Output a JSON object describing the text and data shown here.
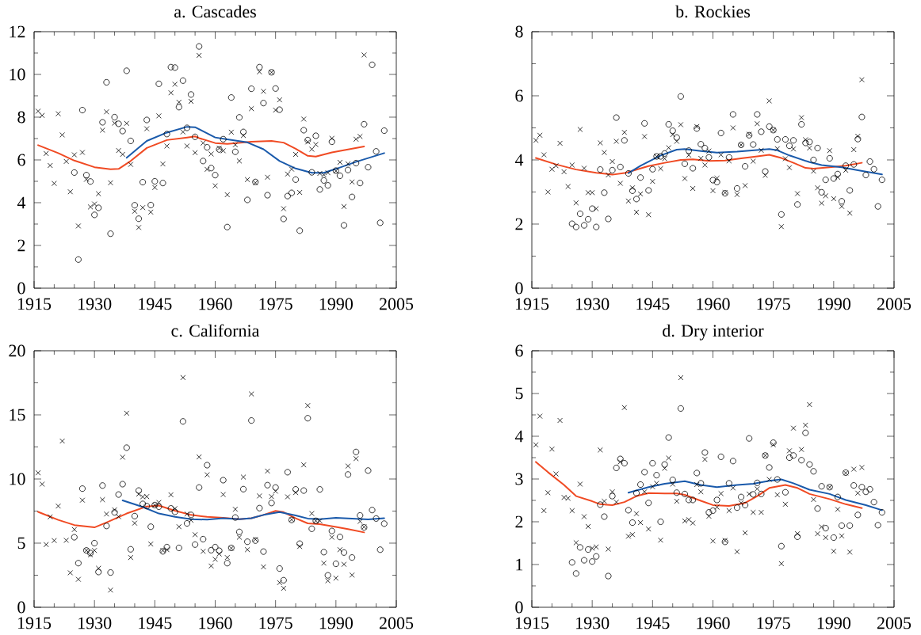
{
  "chart_data": [
    {
      "type": "scatter",
      "title": "a. Cascades",
      "xlim": [
        1915,
        2005
      ],
      "ylim": [
        0,
        12
      ],
      "xticks": [
        1915,
        1930,
        1945,
        1960,
        1975,
        1990,
        2005
      ],
      "yticks": [
        0,
        2,
        4,
        6,
        8,
        10,
        12
      ],
      "series": [
        {
          "marker": "circle",
          "color": "#000000",
          "x": [
            1925,
            1926,
            1927,
            1928,
            1929,
            1930,
            1931,
            1932,
            1933,
            1934,
            1935,
            1936,
            1937,
            1938,
            1939,
            1940,
            1941,
            1942,
            1943,
            1944,
            1945,
            1946,
            1947,
            1948,
            1949,
            1950,
            1951,
            1952,
            1953,
            1954,
            1955,
            1956,
            1957,
            1958,
            1959,
            1960,
            1961,
            1962,
            1963,
            1964,
            1965,
            1966,
            1967,
            1968,
            1969,
            1970,
            1971,
            1972,
            1973,
            1974,
            1975,
            1976,
            1977,
            1978,
            1979,
            1980,
            1981,
            1982,
            1983,
            1984,
            1985,
            1986,
            1987,
            1988,
            1989,
            1990,
            1991,
            1992,
            1993,
            1994,
            1995,
            1996,
            1997,
            1998,
            1999,
            2000,
            2001,
            2002
          ],
          "values": [
            5.41,
            1.34,
            8.33,
            5.29,
            4.99,
            3.43,
            3.76,
            7.76,
            9.63,
            2.55,
            8.0,
            7.69,
            7.35,
            10.17,
            6.89,
            3.88,
            3.25,
            4.96,
            7.87,
            3.89,
            5.0,
            9.56,
            4.92,
            7.21,
            10.34,
            10.32,
            8.47,
            9.71,
            7.5,
            9.06,
            7.08,
            11.31,
            5.95,
            6.59,
            5.62,
            5.29,
            6.49,
            6.97,
            2.86,
            8.92,
            6.38,
            7.99,
            7.31,
            4.13,
            9.33,
            4.97,
            10.34,
            8.66,
            4.35,
            10.1,
            9.34,
            8.35,
            3.24,
            4.31,
            4.46,
            5.08,
            2.69,
            7.39,
            6.93,
            5.42,
            7.13,
            4.62,
            5.04,
            4.81,
            6.85,
            5.5,
            5.26,
            2.94,
            5.53,
            4.27,
            5.85,
            4.92,
            7.67,
            5.66,
            10.45,
            6.4,
            3.06,
            7.37
          ]
        },
        {
          "marker": "cross",
          "color": "#000000",
          "x": [
            1916,
            1917,
            1918,
            1919,
            1920,
            1921,
            1922,
            1923,
            1924,
            1925,
            1926,
            1927,
            1928,
            1929,
            1930,
            1931,
            1932,
            1933,
            1934,
            1935,
            1936,
            1937,
            1938,
            1939,
            1940,
            1941,
            1942,
            1943,
            1944,
            1945,
            1946,
            1947,
            1948,
            1949,
            1950,
            1951,
            1952,
            1953,
            1954,
            1955,
            1956,
            1957,
            1958,
            1959,
            1960,
            1961,
            1962,
            1963,
            1964,
            1965,
            1966,
            1967,
            1968,
            1969,
            1970,
            1971,
            1972,
            1973,
            1974,
            1975,
            1976,
            1977,
            1978,
            1979,
            1980,
            1981,
            1982,
            1983,
            1984,
            1985,
            1986,
            1987,
            1988,
            1989,
            1990,
            1991,
            1992,
            1993,
            1994,
            1995,
            1996,
            1997
          ],
          "values": [
            8.28,
            8.08,
            6.3,
            5.74,
            4.9,
            8.16,
            7.17,
            5.93,
            4.51,
            6.24,
            2.91,
            6.35,
            5.09,
            3.8,
            3.94,
            4.42,
            7.39,
            8.25,
            4.93,
            7.72,
            6.44,
            6.26,
            7.71,
            5.79,
            3.6,
            2.84,
            3.77,
            7.46,
            3.56,
            4.71,
            8.06,
            5.81,
            6.65,
            9.14,
            9.54,
            8.7,
            7.31,
            6.65,
            8.74,
            6.34,
            10.89,
            6.79,
            5.56,
            6.28,
            4.79,
            6.55,
            6.43,
            4.37,
            7.3,
            6.71,
            5.95,
            7.14,
            5.08,
            8.4,
            4.93,
            10.12,
            9.21,
            5.19,
            10.1,
            8.33,
            8.81,
            3.72,
            5.34,
            5.57,
            6.26,
            4.48,
            7.91,
            6.84,
            6.5,
            6.72,
            5.37,
            5.3,
            5.4,
            7.01,
            5.48,
            5.89,
            3.82,
            5.82,
            4.97,
            6.97,
            7.1,
            10.91
          ]
        },
        {
          "type": "line",
          "line_style": "solid",
          "color": "#f04a23",
          "x": [
            1916,
            1921,
            1925,
            1930,
            1934,
            1936,
            1939,
            1943,
            1948,
            1953,
            1955,
            1956,
            1960,
            1963,
            1969,
            1974,
            1977,
            1980,
            1983,
            1985,
            1989,
            1993,
            1997
          ],
          "values": [
            6.69,
            6.32,
            5.97,
            5.66,
            5.56,
            5.58,
            5.95,
            6.56,
            6.93,
            7.05,
            7.1,
            7.02,
            6.79,
            6.75,
            6.85,
            6.89,
            6.81,
            6.52,
            6.19,
            6.16,
            6.35,
            6.49,
            6.63
          ]
        },
        {
          "type": "line",
          "line_style": "solid",
          "color": "#1a5aab",
          "x": [
            1938,
            1943,
            1948,
            1953,
            1955,
            1960,
            1963,
            1968,
            1972,
            1976,
            1980,
            1984,
            1987,
            1990,
            1995,
            2002
          ],
          "values": [
            6.1,
            6.89,
            7.28,
            7.55,
            7.53,
            7.05,
            6.96,
            6.82,
            6.5,
            5.95,
            5.6,
            5.4,
            5.4,
            5.58,
            5.91,
            6.32
          ]
        }
      ]
    },
    {
      "type": "scatter",
      "title": "b. Rockies",
      "xlim": [
        1915,
        2005
      ],
      "ylim": [
        0,
        8
      ],
      "xticks": [
        1915,
        1930,
        1945,
        1960,
        1975,
        1990,
        2005
      ],
      "yticks": [
        0,
        2,
        4,
        6,
        8
      ],
      "series": [
        {
          "marker": "circle",
          "color": "#000000",
          "x": [
            1925,
            1926,
            1927,
            1928,
            1929,
            1930,
            1931,
            1932,
            1933,
            1934,
            1935,
            1936,
            1937,
            1938,
            1939,
            1940,
            1941,
            1942,
            1943,
            1944,
            1945,
            1946,
            1947,
            1948,
            1949,
            1950,
            1951,
            1952,
            1953,
            1954,
            1955,
            1956,
            1957,
            1958,
            1959,
            1960,
            1961,
            1962,
            1963,
            1964,
            1965,
            1966,
            1967,
            1968,
            1969,
            1970,
            1971,
            1972,
            1973,
            1974,
            1975,
            1976,
            1977,
            1978,
            1979,
            1980,
            1981,
            1982,
            1983,
            1984,
            1985,
            1986,
            1987,
            1988,
            1989,
            1990,
            1991,
            1992,
            1993,
            1994,
            1995,
            1996,
            1997,
            1998,
            1999,
            2000,
            2001,
            2002
          ],
          "values": [
            2.01,
            1.91,
            2.32,
            1.96,
            2.15,
            2.48,
            1.91,
            3.7,
            2.98,
            2.16,
            3.68,
            5.32,
            3.78,
            4.61,
            3.58,
            3.04,
            2.78,
            3.45,
            5.14,
            3.05,
            3.71,
            4.11,
            4.11,
            4.2,
            5.11,
            4.91,
            4.7,
            5.98,
            3.88,
            4.29,
            3.74,
            4.98,
            4.49,
            4.37,
            4.08,
            3.37,
            3.31,
            4.84,
            2.96,
            4.08,
            5.42,
            3.11,
            4.47,
            3.8,
            4.77,
            4.48,
            5.42,
            4.88,
            3.64,
            5.04,
            4.93,
            4.64,
            2.3,
            4.64,
            4.44,
            4.61,
            2.61,
            5.11,
            4.53,
            4.56,
            4.0,
            4.37,
            2.99,
            3.38,
            4.05,
            3.42,
            3.56,
            2.71,
            3.82,
            3.05,
            3.86,
            4.65,
            5.34,
            3.53,
            3.95,
            3.71,
            2.55,
            3.38
          ]
        },
        {
          "marker": "cross",
          "color": "#000000",
          "x": [
            1916,
            1917,
            1918,
            1919,
            1920,
            1921,
            1922,
            1923,
            1924,
            1925,
            1926,
            1927,
            1928,
            1929,
            1930,
            1931,
            1932,
            1933,
            1934,
            1935,
            1936,
            1937,
            1938,
            1939,
            1940,
            1941,
            1942,
            1943,
            1944,
            1945,
            1946,
            1947,
            1948,
            1949,
            1950,
            1951,
            1952,
            1953,
            1954,
            1955,
            1956,
            1957,
            1958,
            1959,
            1960,
            1961,
            1962,
            1963,
            1964,
            1965,
            1966,
            1967,
            1968,
            1969,
            1970,
            1971,
            1972,
            1973,
            1974,
            1975,
            1976,
            1977,
            1978,
            1979,
            1980,
            1981,
            1982,
            1983,
            1984,
            1985,
            1986,
            1987,
            1988,
            1989,
            1990,
            1991,
            1992,
            1993,
            1994,
            1995,
            1996,
            1997
          ],
          "values": [
            4.61,
            4.77,
            4.16,
            3.0,
            3.71,
            3.82,
            4.52,
            3.63,
            3.17,
            3.84,
            2.66,
            4.95,
            3.74,
            2.98,
            2.98,
            2.48,
            4.53,
            4.23,
            3.53,
            3.95,
            4.58,
            3.27,
            4.86,
            2.72,
            3.13,
            2.37,
            2.94,
            4.73,
            2.29,
            3.33,
            4.11,
            3.73,
            4.04,
            4.38,
            4.79,
            4.58,
            5.1,
            3.42,
            4.15,
            3.11,
            5.04,
            4.05,
            3.84,
            4.28,
            3.04,
            3.43,
            4.16,
            2.98,
            3.97,
            5.0,
            2.92,
            4.47,
            3.2,
            4.8,
            3.96,
            5.13,
            4.3,
            3.52,
            5.84,
            4.93,
            4.35,
            1.92,
            4.04,
            3.76,
            4.34,
            2.95,
            5.32,
            4.63,
            4.37,
            3.65,
            3.13,
            2.65,
            2.88,
            4.29,
            2.79,
            3.46,
            2.55,
            3.68,
            2.34,
            4.32,
            4.74,
            6.5
          ]
        },
        {
          "type": "line",
          "line_style": "solid",
          "color": "#f04a23",
          "x": [
            1916,
            1921,
            1926,
            1931,
            1935,
            1938,
            1940,
            1944,
            1948,
            1952,
            1955,
            1959,
            1963,
            1967,
            1971,
            1974,
            1977,
            1980,
            1983,
            1985,
            1989,
            1993,
            1997
          ],
          "values": [
            4.06,
            3.86,
            3.7,
            3.6,
            3.54,
            3.59,
            3.66,
            3.81,
            3.91,
            4.0,
            4.02,
            3.97,
            3.98,
            4.05,
            4.11,
            4.16,
            4.06,
            3.91,
            3.75,
            3.73,
            3.77,
            3.82,
            3.91
          ]
        },
        {
          "type": "line",
          "line_style": "solid",
          "color": "#1a5aab",
          "x": [
            1939,
            1942,
            1947,
            1951,
            1953,
            1957,
            1961,
            1966,
            1970,
            1974,
            1976,
            1979,
            1984,
            1987,
            1992,
            1996,
            2002
          ],
          "values": [
            3.59,
            3.82,
            4.14,
            4.32,
            4.34,
            4.28,
            4.23,
            4.26,
            4.3,
            4.34,
            4.3,
            4.14,
            3.93,
            3.84,
            3.77,
            3.68,
            3.55
          ]
        }
      ]
    },
    {
      "type": "scatter",
      "title": "c. California",
      "xlim": [
        1915,
        2005
      ],
      "ylim": [
        0,
        20
      ],
      "xticks": [
        1915,
        1930,
        1945,
        1960,
        1975,
        1990,
        2005
      ],
      "yticks": [
        0,
        5,
        10,
        15,
        20
      ],
      "series": [
        {
          "marker": "circle",
          "color": "#000000",
          "x": [
            1925,
            1926,
            1927,
            1928,
            1929,
            1930,
            1931,
            1932,
            1933,
            1934,
            1935,
            1936,
            1937,
            1938,
            1939,
            1940,
            1941,
            1942,
            1943,
            1944,
            1945,
            1946,
            1947,
            1948,
            1949,
            1950,
            1951,
            1952,
            1953,
            1954,
            1955,
            1956,
            1957,
            1958,
            1959,
            1960,
            1961,
            1962,
            1963,
            1964,
            1965,
            1966,
            1967,
            1968,
            1969,
            1970,
            1971,
            1972,
            1973,
            1974,
            1975,
            1976,
            1977,
            1978,
            1979,
            1980,
            1981,
            1982,
            1983,
            1984,
            1985,
            1986,
            1987,
            1988,
            1989,
            1990,
            1991,
            1992,
            1993,
            1994,
            1995,
            1996,
            1997,
            1998,
            1999,
            2000,
            2001,
            2002
          ],
          "values": [
            5.46,
            3.44,
            9.25,
            4.43,
            4.23,
            5.0,
            2.75,
            9.49,
            6.34,
            2.71,
            7.4,
            8.79,
            9.6,
            12.44,
            4.52,
            7.11,
            9.1,
            8.06,
            7.89,
            6.28,
            7.97,
            7.84,
            4.36,
            4.69,
            7.71,
            7.44,
            4.63,
            14.49,
            6.54,
            7.2,
            4.89,
            9.34,
            5.31,
            11.08,
            4.45,
            4.69,
            4.41,
            9.91,
            3.44,
            4.63,
            7.0,
            5.88,
            9.21,
            5.11,
            14.56,
            5.2,
            7.73,
            4.34,
            9.52,
            8.13,
            9.34,
            3.02,
            2.11,
            10.53,
            6.81,
            9.19,
            4.96,
            9.1,
            14.74,
            6.12,
            6.74,
            9.19,
            4.3,
            2.49,
            5.95,
            3.39,
            5.48,
            4.27,
            10.35,
            3.88,
            12.11,
            7.16,
            6.23,
            10.66,
            7.58,
            6.92,
            4.49,
            6.52
          ]
        },
        {
          "marker": "cross",
          "color": "#000000",
          "x": [
            1916,
            1917,
            1918,
            1919,
            1920,
            1921,
            1922,
            1923,
            1924,
            1925,
            1926,
            1927,
            1928,
            1929,
            1930,
            1931,
            1932,
            1933,
            1934,
            1935,
            1936,
            1937,
            1938,
            1939,
            1940,
            1941,
            1942,
            1943,
            1944,
            1945,
            1946,
            1947,
            1948,
            1949,
            1950,
            1951,
            1952,
            1953,
            1954,
            1955,
            1956,
            1957,
            1958,
            1959,
            1960,
            1961,
            1962,
            1963,
            1964,
            1965,
            1966,
            1967,
            1968,
            1969,
            1970,
            1971,
            1972,
            1973,
            1974,
            1975,
            1976,
            1977,
            1978,
            1979,
            1980,
            1981,
            1982,
            1983,
            1984,
            1985,
            1986,
            1987,
            1988,
            1989,
            1990,
            1991,
            1992,
            1993,
            1994,
            1995,
            1996,
            1997
          ],
          "values": [
            10.48,
            9.6,
            4.89,
            7.05,
            5.2,
            7.89,
            12.96,
            5.22,
            2.69,
            6.06,
            2.18,
            8.35,
            4.43,
            4.1,
            4.43,
            3.04,
            8.39,
            7.27,
            1.34,
            7.6,
            7.07,
            11.7,
            15.13,
            3.88,
            6.56,
            8.83,
            8.61,
            8.63,
            4.93,
            7.97,
            8.17,
            4.43,
            4.49,
            8.77,
            7.69,
            6.28,
            17.91,
            7.27,
            6.78,
            5.66,
            11.72,
            4.36,
            10.33,
            3.22,
            3.74,
            4.16,
            8.79,
            3.88,
            4.6,
            7.64,
            5.46,
            10.15,
            4.49,
            16.63,
            5.29,
            8.68,
            3.15,
            10.62,
            8.63,
            9.05,
            1.92,
            1.48,
            8.61,
            6.83,
            8.94,
            4.74,
            11.1,
            15.73,
            7.31,
            6.74,
            6.74,
            3.44,
            2.07,
            5.46,
            2.27,
            4.49,
            3.35,
            11.01,
            2.51,
            11.59,
            6.7,
            6.26
          ]
        },
        {
          "type": "line",
          "line_style": "solid",
          "color": "#f04a23",
          "x": [
            1916,
            1921,
            1925,
            1930,
            1933,
            1938,
            1943,
            1946,
            1950,
            1954,
            1958,
            1962,
            1966,
            1969,
            1972,
            1975,
            1977,
            1980,
            1983,
            1986,
            1990,
            1993,
            1997
          ],
          "values": [
            7.44,
            6.81,
            6.41,
            6.23,
            6.61,
            7.31,
            7.86,
            7.93,
            7.53,
            7.2,
            7.05,
            6.98,
            6.87,
            6.94,
            7.2,
            7.51,
            7.42,
            6.94,
            6.54,
            6.48,
            6.26,
            6.1,
            5.84
          ]
        },
        {
          "type": "line",
          "line_style": "solid",
          "color": "#1a5aab",
          "x": [
            1937,
            1942,
            1946,
            1950,
            1954,
            1958,
            1962,
            1966,
            1969,
            1972,
            1976,
            1980,
            1983,
            1986,
            1990,
            1994,
            1998,
            2002
          ],
          "values": [
            8.33,
            7.82,
            7.31,
            7.05,
            6.87,
            6.83,
            6.94,
            6.87,
            6.94,
            7.2,
            7.42,
            7.16,
            6.92,
            6.87,
            6.98,
            6.92,
            6.85,
            6.94
          ]
        }
      ]
    },
    {
      "type": "scatter",
      "title": "d. Dry interior",
      "xlim": [
        1915,
        2005
      ],
      "ylim": [
        0,
        6
      ],
      "xticks": [
        1915,
        1930,
        1945,
        1960,
        1975,
        1990,
        2005
      ],
      "yticks": [
        0,
        1,
        2,
        3,
        4,
        5,
        6
      ],
      "series": [
        {
          "marker": "circle",
          "color": "#000000",
          "x": [
            1925,
            1926,
            1927,
            1928,
            1929,
            1930,
            1931,
            1932,
            1933,
            1934,
            1935,
            1936,
            1937,
            1938,
            1939,
            1940,
            1941,
            1942,
            1943,
            1944,
            1945,
            1946,
            1947,
            1948,
            1949,
            1950,
            1951,
            1952,
            1953,
            1954,
            1955,
            1956,
            1957,
            1958,
            1959,
            1960,
            1961,
            1962,
            1963,
            1964,
            1965,
            1966,
            1967,
            1968,
            1969,
            1970,
            1971,
            1972,
            1973,
            1974,
            1975,
            1976,
            1977,
            1978,
            1979,
            1980,
            1981,
            1982,
            1983,
            1984,
            1985,
            1986,
            1987,
            1988,
            1989,
            1990,
            1991,
            1992,
            1993,
            1994,
            1995,
            1996,
            1997,
            1998,
            1999,
            2000,
            2001,
            2002
          ],
          "values": [
            1.05,
            0.79,
            1.4,
            1.1,
            1.35,
            1.07,
            1.19,
            2.4,
            2.12,
            0.73,
            2.6,
            3.26,
            3.47,
            3.37,
            2.27,
            1.98,
            2.67,
            2.87,
            3.16,
            2.44,
            3.37,
            3.09,
            2.0,
            3.34,
            3.97,
            2.98,
            2.68,
            4.65,
            2.65,
            2.51,
            2.51,
            3.14,
            2.9,
            3.62,
            2.22,
            2.26,
            2.51,
            3.52,
            1.53,
            2.9,
            3.42,
            2.33,
            2.58,
            2.39,
            3.95,
            2.64,
            2.91,
            2.65,
            3.55,
            3.27,
            3.85,
            2.99,
            1.43,
            2.69,
            3.5,
            3.55,
            1.65,
            3.44,
            4.08,
            3.34,
            3.18,
            2.31,
            2.83,
            1.85,
            2.81,
            1.63,
            2.58,
            1.91,
            3.15,
            1.91,
            2.85,
            2.16,
            2.81,
            2.7,
            2.76,
            2.46,
            1.92,
            2.22
          ]
        },
        {
          "marker": "cross",
          "color": "#000000",
          "x": [
            1916,
            1917,
            1918,
            1919,
            1920,
            1921,
            1922,
            1923,
            1924,
            1925,
            1926,
            1927,
            1928,
            1929,
            1930,
            1931,
            1932,
            1933,
            1934,
            1935,
            1936,
            1937,
            1938,
            1939,
            1940,
            1941,
            1942,
            1943,
            1944,
            1945,
            1946,
            1947,
            1948,
            1949,
            1950,
            1951,
            1952,
            1953,
            1954,
            1955,
            1956,
            1957,
            1958,
            1959,
            1960,
            1961,
            1962,
            1963,
            1964,
            1965,
            1966,
            1967,
            1968,
            1969,
            1970,
            1971,
            1972,
            1973,
            1974,
            1975,
            1976,
            1977,
            1978,
            1979,
            1980,
            1981,
            1982,
            1983,
            1984,
            1985,
            1986,
            1987,
            1988,
            1989,
            1990,
            1991,
            1992,
            1993,
            1994,
            1995,
            1996,
            1997
          ],
          "values": [
            3.8,
            4.47,
            2.26,
            2.68,
            3.7,
            3.12,
            4.37,
            2.57,
            2.55,
            2.26,
            1.51,
            2.88,
            2.12,
            1.89,
            1.38,
            1.41,
            3.68,
            2.48,
            1.36,
            2.7,
            2.46,
            3.4,
            4.67,
            1.66,
            1.7,
            2.19,
            1.98,
            2.7,
            1.83,
            2.82,
            2.9,
            1.57,
            3.25,
            3.49,
            2.88,
            2.48,
            5.37,
            2.02,
            2.05,
            1.97,
            2.87,
            2.7,
            3.46,
            2.13,
            1.55,
            2.34,
            2.66,
            1.56,
            2.26,
            2.79,
            1.3,
            2.44,
            1.74,
            2.65,
            2.22,
            2.77,
            2.22,
            3.55,
            2.99,
            3.8,
            2.63,
            1.02,
            2.41,
            3.66,
            4.19,
            1.72,
            3.69,
            4.26,
            4.74,
            2.52,
            1.72,
            1.88,
            1.63,
            2.81,
            1.31,
            2.29,
            1.67,
            3.14,
            1.29,
            3.23,
            2.67,
            3.27
          ]
        },
        {
          "type": "line",
          "line_style": "solid",
          "color": "#f04a23",
          "x": [
            1916,
            1919,
            1923,
            1926,
            1930,
            1932,
            1935,
            1938,
            1941,
            1944,
            1948,
            1951,
            1953,
            1957,
            1960,
            1964,
            1968,
            1971,
            1974,
            1978,
            1981,
            1984,
            1989,
            1993,
            1997
          ],
          "values": [
            3.4,
            3.16,
            2.86,
            2.6,
            2.48,
            2.41,
            2.39,
            2.46,
            2.6,
            2.67,
            2.66,
            2.66,
            2.63,
            2.49,
            2.39,
            2.37,
            2.44,
            2.6,
            2.79,
            2.86,
            2.79,
            2.65,
            2.53,
            2.41,
            2.32
          ]
        },
        {
          "type": "line",
          "line_style": "solid",
          "color": "#1a5aab",
          "x": [
            1939,
            1944,
            1948,
            1953,
            1957,
            1961,
            1966,
            1970,
            1974,
            1977,
            1980,
            1984,
            1989,
            1993,
            1998,
            2002
          ],
          "values": [
            2.68,
            2.81,
            2.89,
            2.95,
            2.86,
            2.81,
            2.86,
            2.89,
            2.96,
            2.99,
            2.9,
            2.75,
            2.65,
            2.51,
            2.39,
            2.27
          ]
        }
      ]
    }
  ]
}
